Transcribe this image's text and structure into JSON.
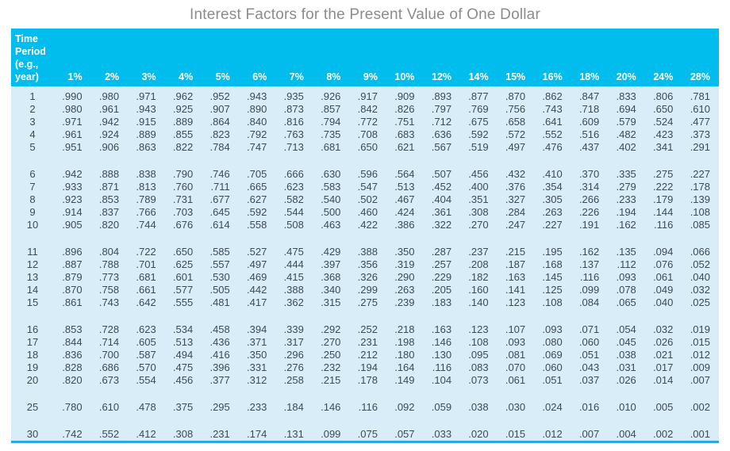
{
  "title": "Interest Factors for the Present Value of One Dollar",
  "colors": {
    "header_bg": "#00bdee",
    "body_bg": "#d9edf8",
    "bottom_rule": "#29a8e0",
    "title_text": "#8c8c8c",
    "body_text": "#3d4a53",
    "header_text": "#ffffff"
  },
  "table": {
    "corner_lines": [
      "Time",
      "Period",
      "(e.g.,",
      "year)"
    ],
    "rate_headers": [
      "1%",
      "2%",
      "3%",
      "4%",
      "5%",
      "6%",
      "7%",
      "8%",
      "9%",
      "10%",
      "12%",
      "14%",
      "15%",
      "16%",
      "18%",
      "20%",
      "24%",
      "28%"
    ],
    "groups": [
      {
        "rows": [
          {
            "period": "1",
            "values": [
              ".990",
              ".980",
              ".971",
              ".962",
              ".952",
              ".943",
              ".935",
              ".926",
              ".917",
              ".909",
              ".893",
              ".877",
              ".870",
              ".862",
              ".847",
              ".833",
              ".806",
              ".781"
            ]
          },
          {
            "period": "2",
            "values": [
              ".980",
              ".961",
              ".943",
              ".925",
              ".907",
              ".890",
              ".873",
              ".857",
              ".842",
              ".826",
              ".797",
              ".769",
              ".756",
              ".743",
              ".718",
              ".694",
              ".650",
              ".610"
            ]
          },
          {
            "period": "3",
            "values": [
              ".971",
              ".942",
              ".915",
              ".889",
              ".864",
              ".840",
              ".816",
              ".794",
              ".772",
              ".751",
              ".712",
              ".675",
              ".658",
              ".641",
              ".609",
              ".579",
              ".524",
              ".477"
            ]
          },
          {
            "period": "4",
            "values": [
              ".961",
              ".924",
              ".889",
              ".855",
              ".823",
              ".792",
              ".763",
              ".735",
              ".708",
              ".683",
              ".636",
              ".592",
              ".572",
              ".552",
              ".516",
              ".482",
              ".423",
              ".373"
            ]
          },
          {
            "period": "5",
            "values": [
              ".951",
              ".906",
              ".863",
              ".822",
              ".784",
              ".747",
              ".713",
              ".681",
              ".650",
              ".621",
              ".567",
              ".519",
              ".497",
              ".476",
              ".437",
              ".402",
              ".341",
              ".291"
            ]
          }
        ]
      },
      {
        "rows": [
          {
            "period": "6",
            "values": [
              ".942",
              ".888",
              ".838",
              ".790",
              ".746",
              ".705",
              ".666",
              ".630",
              ".596",
              ".564",
              ".507",
              ".456",
              ".432",
              ".410",
              ".370",
              ".335",
              ".275",
              ".227"
            ]
          },
          {
            "period": "7",
            "values": [
              ".933",
              ".871",
              ".813",
              ".760",
              ".711",
              ".665",
              ".623",
              ".583",
              ".547",
              ".513",
              ".452",
              ".400",
              ".376",
              ".354",
              ".314",
              ".279",
              ".222",
              ".178"
            ]
          },
          {
            "period": "8",
            "values": [
              ".923",
              ".853",
              ".789",
              ".731",
              ".677",
              ".627",
              ".582",
              ".540",
              ".502",
              ".467",
              ".404",
              ".351",
              ".327",
              ".305",
              ".266",
              ".233",
              ".179",
              ".139"
            ]
          },
          {
            "period": "9",
            "values": [
              ".914",
              ".837",
              ".766",
              ".703",
              ".645",
              ".592",
              ".544",
              ".500",
              ".460",
              ".424",
              ".361",
              ".308",
              ".284",
              ".263",
              ".226",
              ".194",
              ".144",
              ".108"
            ]
          },
          {
            "period": "10",
            "values": [
              ".905",
              ".820",
              ".744",
              ".676",
              ".614",
              ".558",
              ".508",
              ".463",
              ".422",
              ".386",
              ".322",
              ".270",
              ".247",
              ".227",
              ".191",
              ".162",
              ".116",
              ".085"
            ]
          }
        ]
      },
      {
        "rows": [
          {
            "period": "11",
            "values": [
              ".896",
              ".804",
              ".722",
              ".650",
              ".585",
              ".527",
              ".475",
              ".429",
              ".388",
              ".350",
              ".287",
              ".237",
              ".215",
              ".195",
              ".162",
              ".135",
              ".094",
              ".066"
            ]
          },
          {
            "period": "12",
            "values": [
              ".887",
              ".788",
              ".701",
              ".625",
              ".557",
              ".497",
              ".444",
              ".397",
              ".356",
              ".319",
              ".257",
              ".208",
              ".187",
              ".168",
              ".137",
              ".112",
              ".076",
              ".052"
            ]
          },
          {
            "period": "13",
            "values": [
              ".879",
              ".773",
              ".681",
              ".601",
              ".530",
              ".469",
              ".415",
              ".368",
              ".326",
              ".290",
              ".229",
              ".182",
              ".163",
              ".145",
              ".116",
              ".093",
              ".061",
              ".040"
            ]
          },
          {
            "period": "14",
            "values": [
              ".870",
              ".758",
              ".661",
              ".577",
              ".505",
              ".442",
              ".388",
              ".340",
              ".299",
              ".263",
              ".205",
              ".160",
              ".141",
              ".125",
              ".099",
              ".078",
              ".049",
              ".032"
            ]
          },
          {
            "period": "15",
            "values": [
              ".861",
              ".743",
              ".642",
              ".555",
              ".481",
              ".417",
              ".362",
              ".315",
              ".275",
              ".239",
              ".183",
              ".140",
              ".123",
              ".108",
              ".084",
              ".065",
              ".040",
              ".025"
            ]
          }
        ]
      },
      {
        "rows": [
          {
            "period": "16",
            "values": [
              ".853",
              ".728",
              ".623",
              ".534",
              ".458",
              ".394",
              ".339",
              ".292",
              ".252",
              ".218",
              ".163",
              ".123",
              ".107",
              ".093",
              ".071",
              ".054",
              ".032",
              ".019"
            ]
          },
          {
            "period": "17",
            "values": [
              ".844",
              ".714",
              ".605",
              ".513",
              ".436",
              ".371",
              ".317",
              ".270",
              ".231",
              ".198",
              ".146",
              ".108",
              ".093",
              ".080",
              ".060",
              ".045",
              ".026",
              ".015"
            ]
          },
          {
            "period": "18",
            "values": [
              ".836",
              ".700",
              ".587",
              ".494",
              ".416",
              ".350",
              ".296",
              ".250",
              ".212",
              ".180",
              ".130",
              ".095",
              ".081",
              ".069",
              ".051",
              ".038",
              ".021",
              ".012"
            ]
          },
          {
            "period": "19",
            "values": [
              ".828",
              ".686",
              ".570",
              ".475",
              ".396",
              ".331",
              ".276",
              ".232",
              ".194",
              ".164",
              ".116",
              ".083",
              ".070",
              ".060",
              ".043",
              ".031",
              ".017",
              ".009"
            ]
          },
          {
            "period": "20",
            "values": [
              ".820",
              ".673",
              ".554",
              ".456",
              ".377",
              ".312",
              ".258",
              ".215",
              ".178",
              ".149",
              ".104",
              ".073",
              ".061",
              ".051",
              ".037",
              ".026",
              ".014",
              ".007"
            ]
          }
        ]
      },
      {
        "rows": [
          {
            "period": "25",
            "values": [
              ".780",
              ".610",
              ".478",
              ".375",
              ".295",
              ".233",
              ".184",
              ".146",
              ".116",
              ".092",
              ".059",
              ".038",
              ".030",
              ".024",
              ".016",
              ".010",
              ".005",
              ".002"
            ]
          }
        ]
      },
      {
        "rows": [
          {
            "period": "30",
            "values": [
              ".742",
              ".552",
              ".412",
              ".308",
              ".231",
              ".174",
              ".131",
              ".099",
              ".075",
              ".057",
              ".033",
              ".020",
              ".015",
              ".012",
              ".007",
              ".004",
              ".002",
              ".001"
            ]
          }
        ]
      }
    ]
  }
}
